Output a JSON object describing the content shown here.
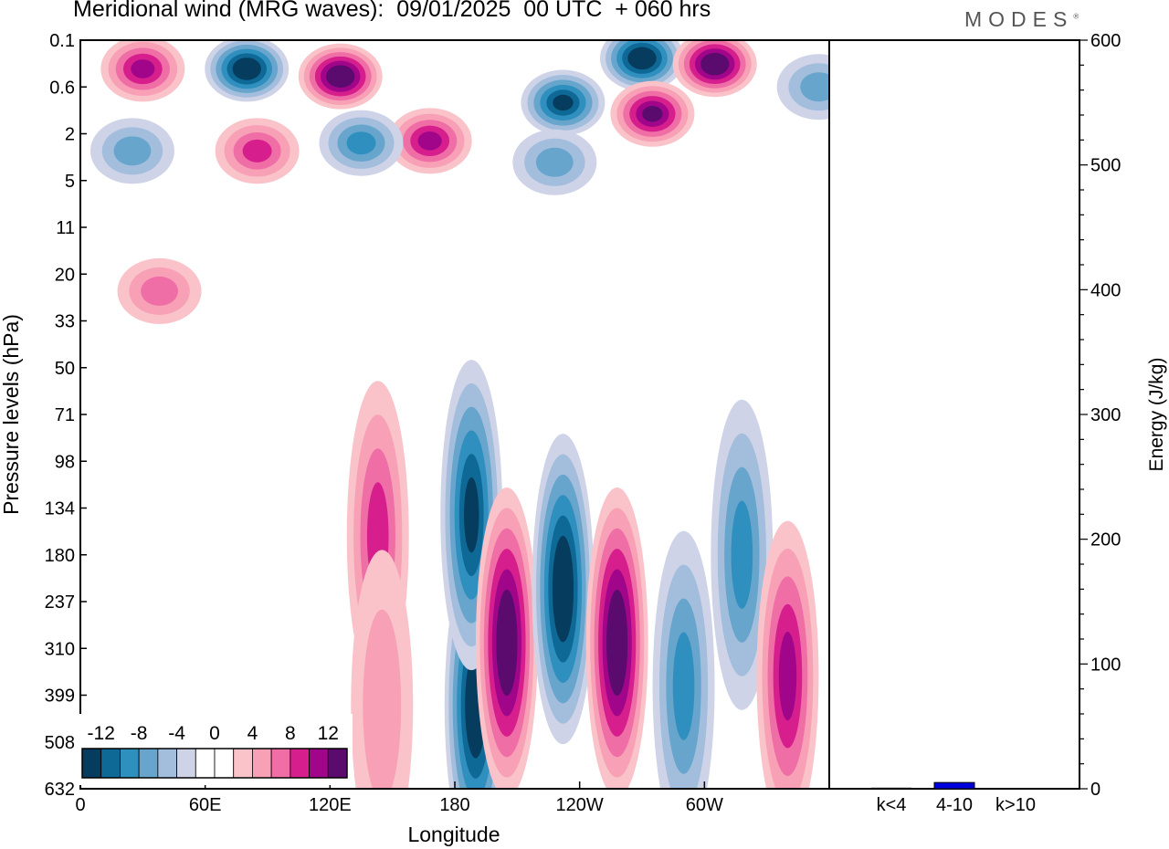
{
  "header": {
    "title": "Meridional wind (MRG waves):  09/01/2025  00 UTC  + 060 hrs",
    "brand": "MODES"
  },
  "colors": {
    "scale": [
      "#063d5f",
      "#0f6996",
      "#2f8fbe",
      "#67a5cd",
      "#a3bedc",
      "#cfd3e8",
      "#ffffff",
      "#ffffff",
      "#f9c3c9",
      "#f8a0b6",
      "#ef6ea6",
      "#d61f8d",
      "#a1068a",
      "#5b0a6e"
    ],
    "bar": "#0000dd"
  },
  "chart_data": [
    {
      "type": "heatmap",
      "xlabel": "Longitude",
      "ylabel": "Pressure levels (hPa)",
      "x_ticks": [
        "0",
        "60E",
        "120E",
        "180",
        "120W",
        "60W"
      ],
      "y_ticks": [
        "0.1",
        "0.6",
        "2",
        "5",
        "11",
        "20",
        "33",
        "50",
        "71",
        "98",
        "134",
        "180",
        "237",
        "310",
        "399",
        "508",
        "632"
      ],
      "colorbar_labels": [
        "-12",
        "-8",
        "-4",
        "0",
        "4",
        "8",
        "12"
      ],
      "features": [
        {
          "lon": 190,
          "p": 420,
          "value": -14
        },
        {
          "lon": 188,
          "p": 140,
          "value": -12
        },
        {
          "lon": 205,
          "p": 300,
          "value": 15
        },
        {
          "lon": 232,
          "p": 220,
          "value": -14
        },
        {
          "lon": 258,
          "p": 300,
          "value": 13
        },
        {
          "lon": 143,
          "p": 160,
          "value": 7
        },
        {
          "lon": 145,
          "p": 420,
          "value": 4
        },
        {
          "lon": 290,
          "p": 380,
          "value": -7
        },
        {
          "lon": 318,
          "p": 180,
          "value": -8
        },
        {
          "lon": 340,
          "p": 360,
          "value": 9
        },
        {
          "lon": 355,
          "p": 0.6,
          "value": -6
        },
        {
          "lon": 80,
          "p": 0.3,
          "value": -15
        },
        {
          "lon": 125,
          "p": 0.4,
          "value": 15
        },
        {
          "lon": 270,
          "p": 0.2,
          "value": -13
        },
        {
          "lon": 305,
          "p": 0.25,
          "value": 13
        },
        {
          "lon": 275,
          "p": 1.2,
          "value": 12
        },
        {
          "lon": 232,
          "p": 0.9,
          "value": -11
        },
        {
          "lon": 30,
          "p": 0.3,
          "value": 9
        },
        {
          "lon": 85,
          "p": 2.8,
          "value": 8
        },
        {
          "lon": 168,
          "p": 2.3,
          "value": 10
        },
        {
          "lon": 135,
          "p": 2.4,
          "value": -8
        },
        {
          "lon": 25,
          "p": 2.8,
          "value": -5
        },
        {
          "lon": 228,
          "p": 3.5,
          "value": -6
        },
        {
          "lon": 38,
          "p": 24,
          "value": 5
        }
      ]
    },
    {
      "type": "bar",
      "ylabel": "Energy (J/kg)",
      "ylim": [
        0,
        600
      ],
      "y_ticks": [
        "0",
        "100",
        "200",
        "300",
        "400",
        "500",
        "600"
      ],
      "categories": [
        "k<4",
        "4-10",
        "k>10"
      ],
      "values": [
        0.5,
        5,
        0.3
      ]
    }
  ]
}
